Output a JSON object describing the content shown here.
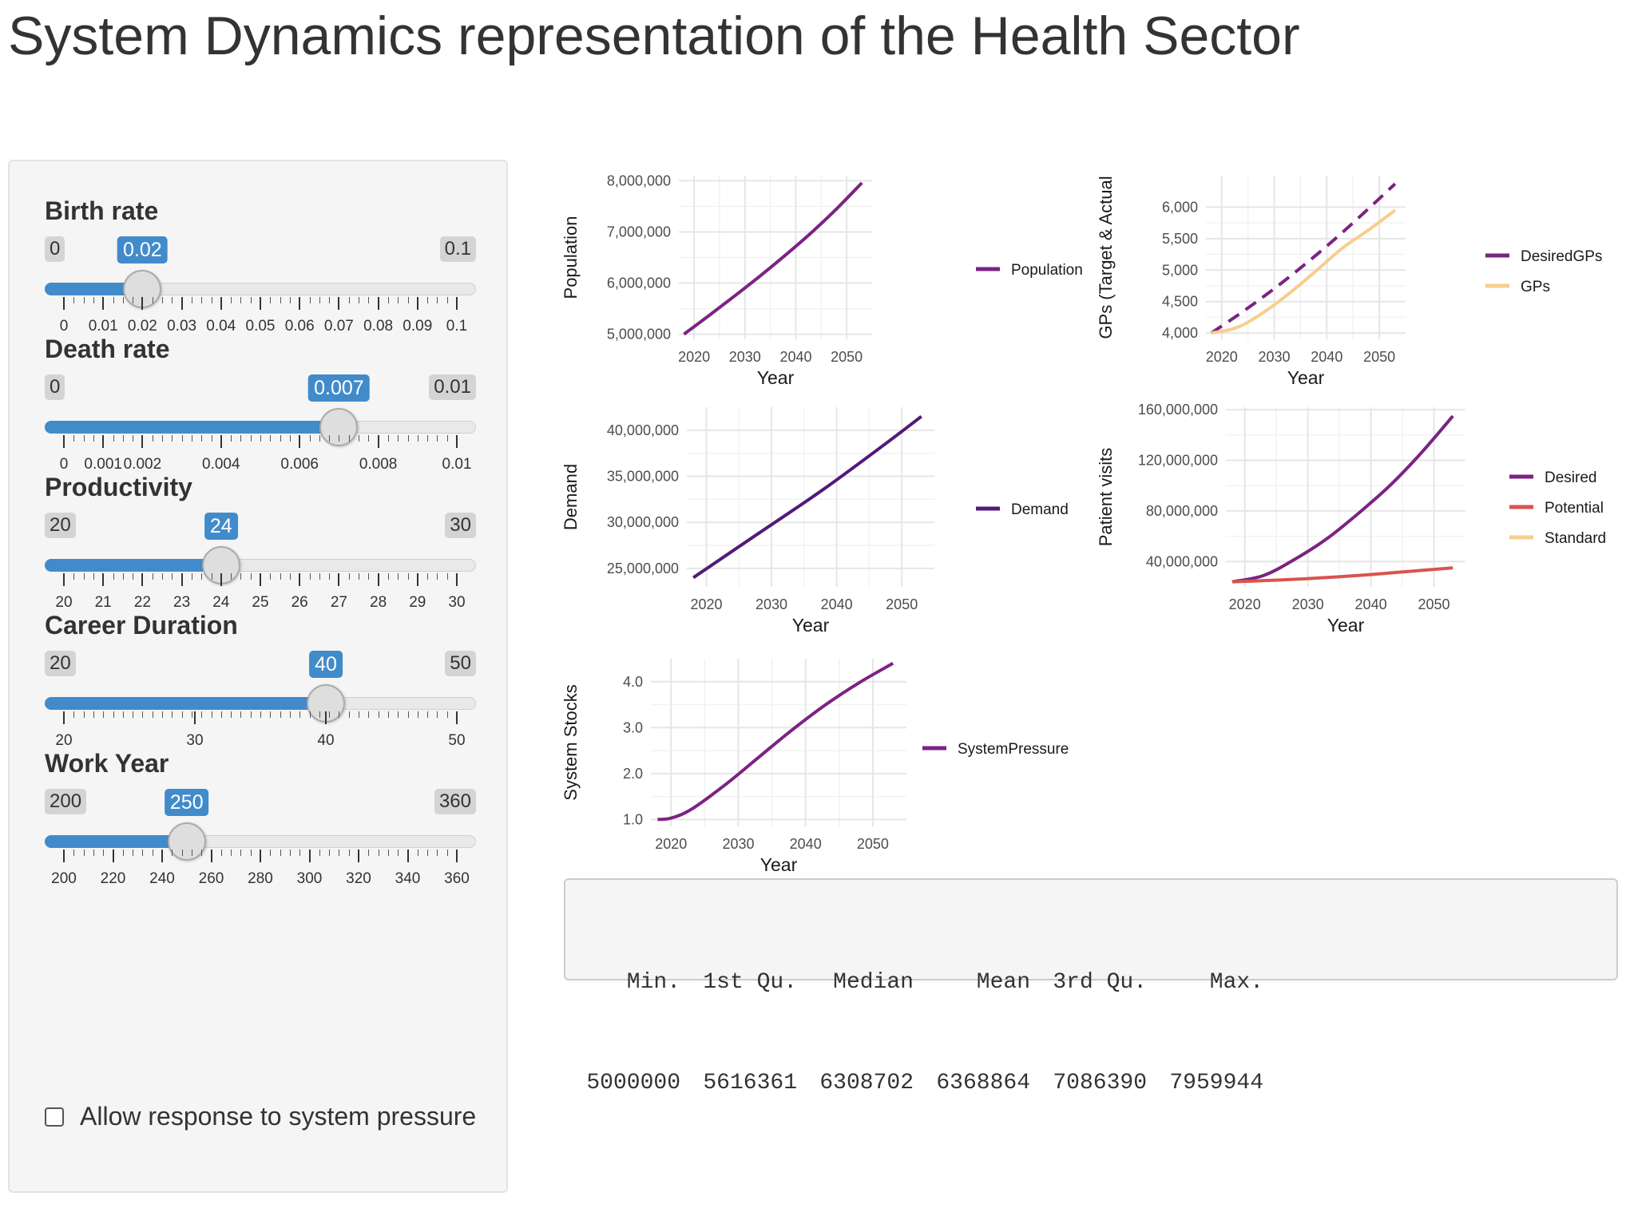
{
  "page_title": "System Dynamics representation of the Health Sector",
  "colors": {
    "accent": "#428bca",
    "purple": "#7b2382",
    "dark_purple": "#52197a",
    "red": "#d9534f",
    "peach": "#f6ce8d"
  },
  "sliders": [
    {
      "label": "Birth rate",
      "min_label": "0",
      "max_label": "0.1",
      "value_label": "0.02",
      "min": 0,
      "max": 0.1,
      "value": 0.02,
      "ticks": [
        {
          "v": 0,
          "t": "0"
        },
        {
          "v": 0.01,
          "t": "0.01"
        },
        {
          "v": 0.02,
          "t": "0.02"
        },
        {
          "v": 0.03,
          "t": "0.03"
        },
        {
          "v": 0.04,
          "t": "0.04"
        },
        {
          "v": 0.05,
          "t": "0.05"
        },
        {
          "v": 0.06,
          "t": "0.06"
        },
        {
          "v": 0.07,
          "t": "0.07"
        },
        {
          "v": 0.08,
          "t": "0.08"
        },
        {
          "v": 0.09,
          "t": "0.09"
        },
        {
          "v": 0.1,
          "t": "0.1"
        }
      ]
    },
    {
      "label": "Death rate",
      "min_label": "0",
      "max_label": "0.01",
      "value_label": "0.007",
      "min": 0,
      "max": 0.01,
      "value": 0.007,
      "ticks": [
        {
          "v": 0,
          "t": "0"
        },
        {
          "v": 0.001,
          "t": "0.001"
        },
        {
          "v": 0.002,
          "t": "0.002"
        },
        {
          "v": 0.004,
          "t": "0.004"
        },
        {
          "v": 0.006,
          "t": "0.006"
        },
        {
          "v": 0.008,
          "t": "0.008"
        },
        {
          "v": 0.01,
          "t": "0.01"
        }
      ]
    },
    {
      "label": "Productivity",
      "min_label": "20",
      "max_label": "30",
      "value_label": "24",
      "min": 20,
      "max": 30,
      "value": 24,
      "ticks": [
        {
          "v": 20,
          "t": "20"
        },
        {
          "v": 21,
          "t": "21"
        },
        {
          "v": 22,
          "t": "22"
        },
        {
          "v": 23,
          "t": "23"
        },
        {
          "v": 24,
          "t": "24"
        },
        {
          "v": 25,
          "t": "25"
        },
        {
          "v": 26,
          "t": "26"
        },
        {
          "v": 27,
          "t": "27"
        },
        {
          "v": 28,
          "t": "28"
        },
        {
          "v": 29,
          "t": "29"
        },
        {
          "v": 30,
          "t": "30"
        }
      ]
    },
    {
      "label": "Career Duration",
      "min_label": "20",
      "max_label": "50",
      "value_label": "40",
      "min": 20,
      "max": 50,
      "value": 40,
      "ticks": [
        {
          "v": 20,
          "t": "20"
        },
        {
          "v": 30,
          "t": "30"
        },
        {
          "v": 40,
          "t": "40"
        },
        {
          "v": 50,
          "t": "50"
        }
      ]
    },
    {
      "label": "Work Year",
      "min_label": "200",
      "max_label": "360",
      "value_label": "250",
      "min": 200,
      "max": 360,
      "value": 250,
      "ticks": [
        {
          "v": 200,
          "t": "200"
        },
        {
          "v": 220,
          "t": "220"
        },
        {
          "v": 240,
          "t": "240"
        },
        {
          "v": 260,
          "t": "260"
        },
        {
          "v": 280,
          "t": "280"
        },
        {
          "v": 300,
          "t": "300"
        },
        {
          "v": 320,
          "t": "320"
        },
        {
          "v": 340,
          "t": "340"
        },
        {
          "v": 360,
          "t": "360"
        }
      ]
    }
  ],
  "checkbox": {
    "label": "Allow response to system pressure",
    "checked": false
  },
  "chart_data": [
    {
      "type": "line",
      "xlabel": "Year",
      "ylabel": "Population",
      "xlim": [
        2017,
        2055
      ],
      "ylim": [
        4900000,
        8100000
      ],
      "xticks": [
        2020,
        2030,
        2040,
        2050
      ],
      "yticks": [
        5000000,
        6000000,
        7000000,
        8000000
      ],
      "ytick_labels": [
        "5,000,000",
        "6,000,000",
        "7,000,000",
        "8,000,000"
      ],
      "series": [
        {
          "name": "Population",
          "color": "#7b2382",
          "dashed": false,
          "x": [
            2018,
            2023,
            2028,
            2033,
            2038,
            2043,
            2048,
            2053
          ],
          "y": [
            5000000,
            5370000,
            5750000,
            6140000,
            6550000,
            6980000,
            7450000,
            7959944
          ]
        }
      ]
    },
    {
      "type": "line",
      "xlabel": "Year",
      "ylabel": "GPs (Target & Actual",
      "xlim": [
        2017,
        2055
      ],
      "ylim": [
        3900000,
        6500000
      ],
      "xticks": [
        2020,
        2030,
        2040,
        2050
      ],
      "yticks": [
        4000,
        4500,
        5000,
        5500,
        6000
      ],
      "ytick_labels": [
        "4,000",
        "4,500",
        "5,000",
        "5,500",
        "6,000"
      ],
      "yscale_units": 1,
      "series": [
        {
          "name": "DesiredGPs",
          "color": "#7b2382",
          "dashed": true,
          "x": [
            2018,
            2023,
            2028,
            2033,
            2038,
            2043,
            2048,
            2053
          ],
          "y": [
            4000,
            4280,
            4580,
            4900,
            5240,
            5600,
            5980,
            6370
          ]
        },
        {
          "name": "GPs",
          "color": "#f6ce8d",
          "dashed": false,
          "x": [
            2018,
            2023,
            2028,
            2033,
            2038,
            2043,
            2048,
            2053
          ],
          "y": [
            4000,
            4090,
            4330,
            4640,
            4990,
            5350,
            5640,
            5950
          ]
        }
      ]
    },
    {
      "type": "line",
      "xlabel": "Year",
      "ylabel": "Demand",
      "xlim": [
        2017,
        2055
      ],
      "ylim": [
        23000000,
        42500000
      ],
      "xticks": [
        2020,
        2030,
        2040,
        2050
      ],
      "yticks": [
        25000000,
        30000000,
        35000000,
        40000000
      ],
      "ytick_labels": [
        "25,000,000",
        "30,000,000",
        "35,000,000",
        "40,000,000"
      ],
      "series": [
        {
          "name": "Demand",
          "color": "#52197a",
          "dashed": false,
          "x": [
            2018,
            2028,
            2038,
            2048,
            2053
          ],
          "y": [
            24000000,
            28800000,
            33600000,
            38800000,
            41500000
          ]
        }
      ]
    },
    {
      "type": "line",
      "xlabel": "Year",
      "ylabel": "Patient visits",
      "xlim": [
        2017,
        2055
      ],
      "ylim": [
        20000000,
        162000000
      ],
      "xticks": [
        2020,
        2030,
        2040,
        2050
      ],
      "yticks": [
        40000000,
        80000000,
        120000000,
        160000000
      ],
      "ytick_labels": [
        "40,000,000",
        "80,000,000",
        "120,000,000",
        "160,000,000"
      ],
      "series": [
        {
          "name": "Desired",
          "color": "#7b2382",
          "dashed": false,
          "x": [
            2018,
            2023,
            2028,
            2033,
            2038,
            2043,
            2048,
            2053
          ],
          "y": [
            24000000,
            29000000,
            42000000,
            58000000,
            78000000,
            100000000,
            126000000,
            155000000
          ]
        },
        {
          "name": "Potential",
          "color": "#d9534f",
          "dashed": false,
          "x": [
            2018,
            2028,
            2038,
            2048,
            2053
          ],
          "y": [
            24000000,
            26000000,
            29000000,
            33000000,
            35000000
          ]
        },
        {
          "name": "Standard",
          "color": "#f6ce8d",
          "dashed": false,
          "x": [],
          "y": []
        }
      ]
    },
    {
      "type": "line",
      "xlabel": "Year",
      "ylabel": "System Stocks",
      "xlim": [
        2017,
        2055
      ],
      "ylim": [
        0.85,
        4.5
      ],
      "xticks": [
        2020,
        2030,
        2040,
        2050
      ],
      "yticks": [
        1.0,
        2.0,
        3.0,
        4.0
      ],
      "ytick_labels": [
        "1.0",
        "2.0",
        "3.0",
        "4.0"
      ],
      "series": [
        {
          "name": "SystemPressure",
          "color": "#7b2382",
          "dashed": false,
          "x": [
            2018,
            2020,
            2023,
            2028,
            2033,
            2038,
            2043,
            2048,
            2053
          ],
          "y": [
            1.0,
            1.03,
            1.22,
            1.75,
            2.35,
            2.95,
            3.5,
            3.98,
            4.4
          ]
        }
      ]
    }
  ],
  "summary": {
    "headers": [
      "Min.",
      "1st Qu.",
      "Median",
      "Mean",
      "3rd Qu.",
      "Max."
    ],
    "values": [
      "5000000",
      "5616361",
      "6308702",
      "6368864",
      "7086390",
      "7959944"
    ]
  }
}
